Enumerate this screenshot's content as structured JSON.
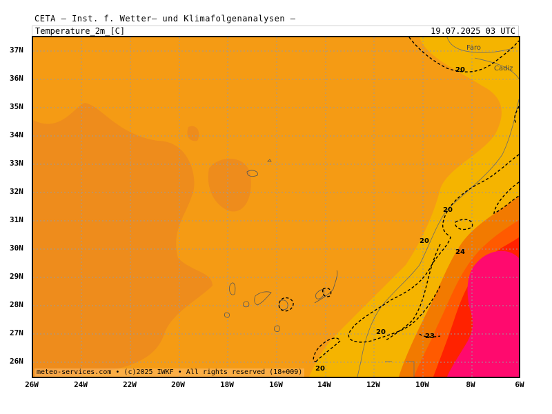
{
  "header": {
    "title": "CETA — Inst. f. Wetter— und Klimafolgenanalysen —",
    "variable": "Temperature_2m_[C]",
    "valid_time": "19.07.2025 03 UTC"
  },
  "map": {
    "lat_labels": [
      "37N",
      "36N",
      "35N",
      "34N",
      "33N",
      "32N",
      "31N",
      "30N",
      "29N",
      "28N",
      "27N",
      "26N"
    ],
    "lon_labels": [
      "26W",
      "24W",
      "22W",
      "20W",
      "18W",
      "16W",
      "14W",
      "12W",
      "10W",
      "8W",
      "6W"
    ],
    "cities": [
      "Faro",
      "Cadiz"
    ],
    "contour_labels": [
      "20",
      "20",
      "20",
      "24",
      "20",
      "23",
      "20"
    ],
    "colors": {
      "t18_20": "#f59b14",
      "t20_22": "#f2a300",
      "t22_24": "#f5b400",
      "t24_26": "#f27a00",
      "t26_28": "#ff5a00",
      "t28_30": "#ff2200",
      "t30_plus": "#ff0a6e",
      "cool_patch": "#ee8c1c"
    }
  },
  "footer": {
    "text": "meteo-services.com • (c)2025 IWKF • All rights reserved (18+009)"
  }
}
